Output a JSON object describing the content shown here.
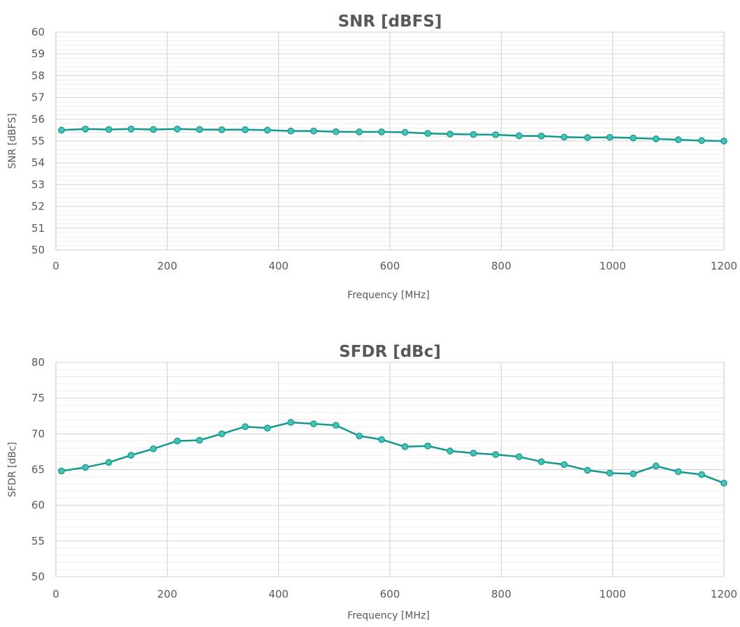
{
  "chart_data": [
    {
      "type": "line",
      "title": "SNR [dBFS]",
      "xlabel": "Frequency [MHz]",
      "ylabel": "SNR [dBFS]",
      "xlim": [
        0,
        1200
      ],
      "ylim": [
        50,
        60
      ],
      "xticks": [
        0,
        200,
        400,
        600,
        800,
        1000,
        1200
      ],
      "yticks": [
        50,
        51,
        52,
        53,
        54,
        55,
        56,
        57,
        58,
        59,
        60
      ],
      "grid": "major vertical and minor horizontal gridlines",
      "legend": "none",
      "color": "#139a8c",
      "marker_color": "#46c3b8",
      "series": [
        {
          "x": [
            10,
            53,
            95,
            135,
            175,
            218,
            258,
            298,
            340,
            380,
            422,
            463,
            503,
            545,
            585,
            627,
            668,
            708,
            750,
            790,
            832,
            872,
            913,
            955,
            995,
            1037,
            1078,
            1118,
            1160,
            1200
          ],
          "y": [
            55.5,
            55.55,
            55.53,
            55.55,
            55.53,
            55.55,
            55.53,
            55.52,
            55.52,
            55.5,
            55.46,
            55.46,
            55.43,
            55.42,
            55.42,
            55.4,
            55.35,
            55.32,
            55.3,
            55.29,
            55.24,
            55.23,
            55.18,
            55.16,
            55.17,
            55.14,
            55.1,
            55.06,
            55.02,
            55.0
          ]
        }
      ]
    },
    {
      "type": "line",
      "title": "SFDR [dBc]",
      "xlabel": "Frequency [MHz]",
      "ylabel": "SFDR [dBc]",
      "xlim": [
        0,
        1200
      ],
      "ylim": [
        50,
        80
      ],
      "xticks": [
        0,
        200,
        400,
        600,
        800,
        1000,
        1200
      ],
      "yticks": [
        50,
        55,
        60,
        65,
        70,
        75,
        80
      ],
      "grid": "major vertical and minor horizontal gridlines",
      "legend": "none",
      "color": "#139a8c",
      "marker_color": "#46c3b8",
      "series": [
        {
          "x": [
            10,
            53,
            95,
            135,
            175,
            218,
            258,
            298,
            340,
            380,
            422,
            463,
            503,
            545,
            585,
            627,
            668,
            708,
            750,
            790,
            832,
            872,
            913,
            955,
            995,
            1037,
            1078,
            1118,
            1160,
            1200
          ],
          "y": [
            64.8,
            65.3,
            66.0,
            67.0,
            67.9,
            69.0,
            69.1,
            70.0,
            71.0,
            70.8,
            71.6,
            71.4,
            71.2,
            69.7,
            69.2,
            68.2,
            68.3,
            67.6,
            67.3,
            67.1,
            66.8,
            66.1,
            65.7,
            64.9,
            64.5,
            64.4,
            65.5,
            64.7,
            64.3,
            63.1
          ]
        }
      ]
    }
  ]
}
